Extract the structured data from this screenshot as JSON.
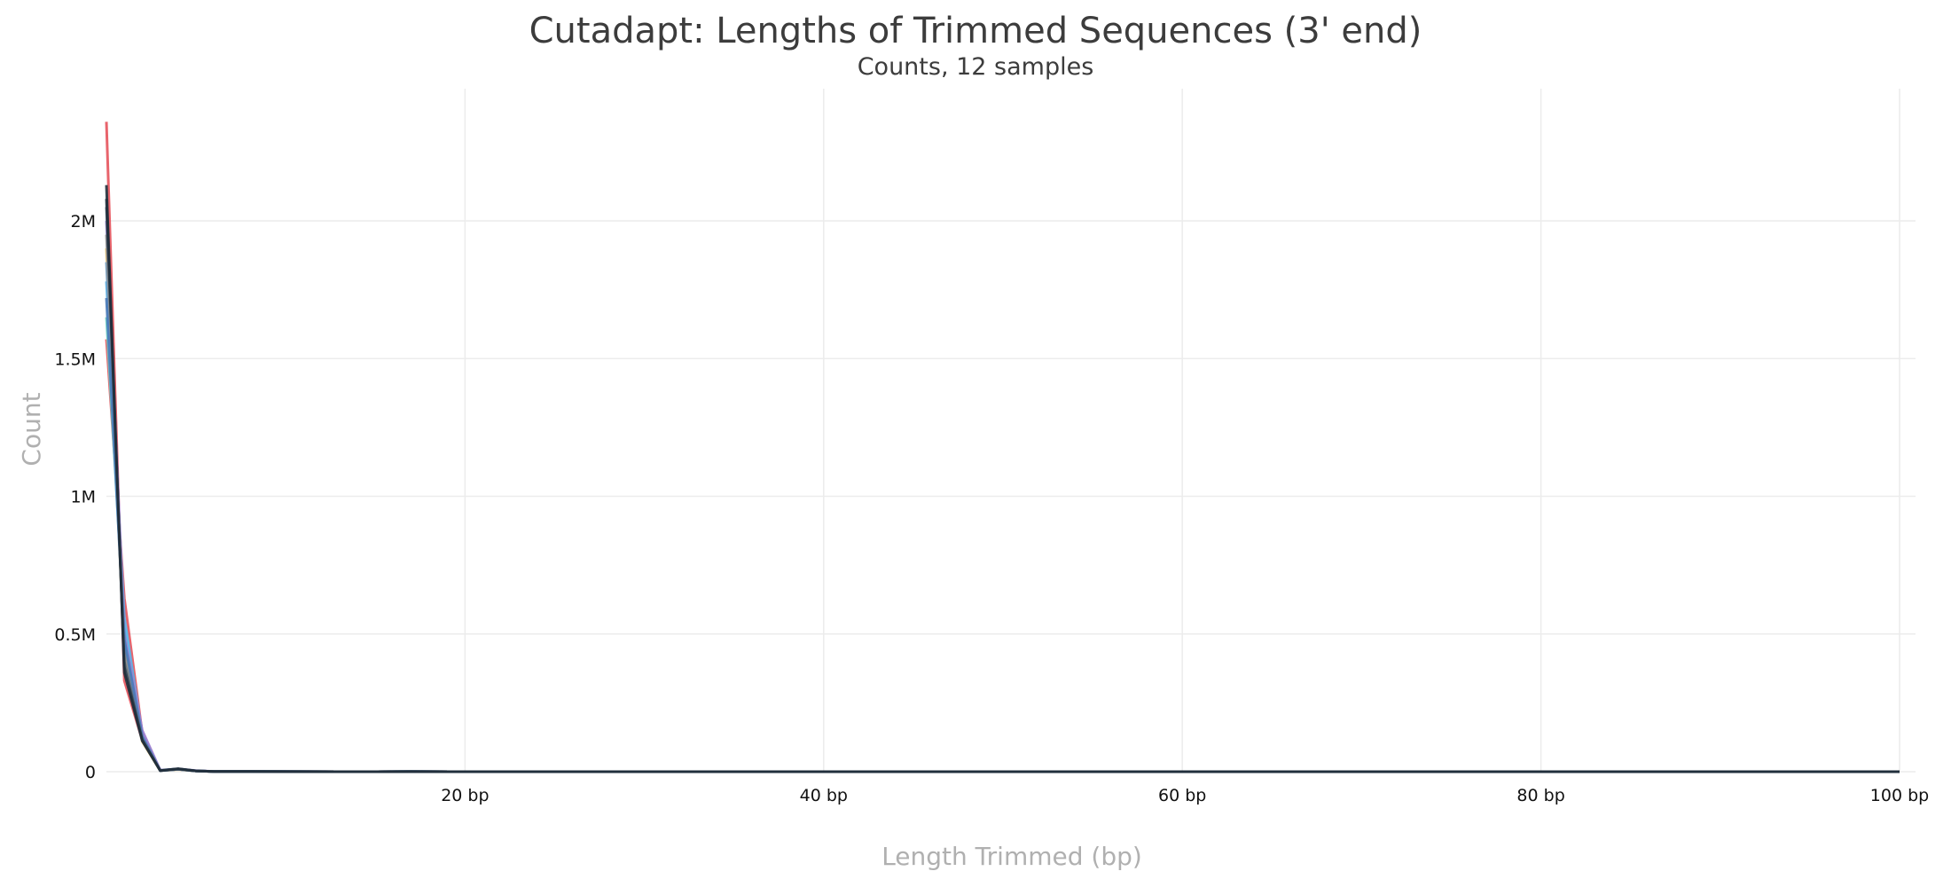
{
  "chart_data": {
    "type": "line",
    "title": "Cutadapt: Lengths of Trimmed Sequences (3' end)",
    "subtitle": "Counts, 12 samples",
    "xlabel": "Length Trimmed (bp)",
    "ylabel": "Count",
    "xlim": [
      0,
      100
    ],
    "ylim": [
      0,
      2480000
    ],
    "x_ticks": [
      {
        "value": 20,
        "label": "20 bp"
      },
      {
        "value": 40,
        "label": "40 bp"
      },
      {
        "value": 60,
        "label": "60 bp"
      },
      {
        "value": 80,
        "label": "80 bp"
      },
      {
        "value": 100,
        "label": "100 bp"
      }
    ],
    "y_ticks": [
      {
        "value": 0,
        "label": "0"
      },
      {
        "value": 500000,
        "label": "0.5M"
      },
      {
        "value": 1000000,
        "label": "1M"
      },
      {
        "value": 1500000,
        "label": "1.5M"
      },
      {
        "value": 2000000,
        "label": "2M"
      }
    ],
    "grid": true,
    "legend": "none",
    "x": [
      0,
      1,
      2,
      3,
      4,
      5,
      6,
      8,
      10,
      15,
      17,
      20,
      30,
      40,
      50,
      60,
      70,
      80,
      90,
      100
    ],
    "series": [
      {
        "color": "#e5535c",
        "values": [
          2360000,
          330000,
          115000,
          4000,
          9000,
          3000,
          1000,
          500,
          200,
          100,
          300,
          100,
          50,
          30,
          20,
          20,
          10,
          10,
          10,
          10
        ]
      },
      {
        "color": "#e5535c",
        "values": [
          1570000,
          630000,
          140000,
          5000,
          9000,
          3000,
          1000,
          500,
          200,
          100,
          300,
          100,
          50,
          30,
          20,
          20,
          10,
          10,
          10,
          10
        ]
      },
      {
        "color": "#f7c353",
        "values": [
          1900000,
          420000,
          110000,
          4000,
          8000,
          3000,
          1000,
          500,
          200,
          100,
          300,
          100,
          50,
          30,
          20,
          20,
          10,
          10,
          10,
          10
        ]
      },
      {
        "color": "#6fd3c5",
        "values": [
          1650000,
          520000,
          130000,
          4000,
          9000,
          3000,
          1000,
          500,
          200,
          100,
          600,
          100,
          50,
          30,
          20,
          20,
          10,
          10,
          10,
          10
        ]
      },
      {
        "color": "#56b4e9",
        "values": [
          1780000,
          560000,
          135000,
          5000,
          10000,
          3000,
          1000,
          500,
          200,
          100,
          400,
          100,
          50,
          30,
          20,
          20,
          10,
          10,
          10,
          10
        ]
      },
      {
        "color": "#9b7fd1",
        "values": [
          2000000,
          500000,
          150000,
          5000,
          10000,
          4000,
          1000,
          500,
          200,
          100,
          300,
          100,
          50,
          30,
          20,
          20,
          10,
          10,
          10,
          10
        ]
      },
      {
        "color": "#6b9ac4",
        "values": [
          1850000,
          470000,
          125000,
          4000,
          9000,
          3000,
          1000,
          500,
          200,
          100,
          300,
          100,
          50,
          30,
          20,
          20,
          10,
          10,
          10,
          10
        ]
      },
      {
        "color": "#8e8e8e",
        "values": [
          1950000,
          440000,
          120000,
          4000,
          9000,
          3000,
          1000,
          500,
          200,
          100,
          300,
          100,
          50,
          30,
          20,
          20,
          10,
          10,
          10,
          10
        ]
      },
      {
        "color": "#4a7ab8",
        "values": [
          1720000,
          480000,
          128000,
          4000,
          9000,
          3000,
          1000,
          500,
          200,
          100,
          300,
          100,
          50,
          30,
          20,
          20,
          10,
          10,
          10,
          10
        ]
      },
      {
        "color": "#5a6b7d",
        "values": [
          2050000,
          400000,
          118000,
          4000,
          9000,
          3000,
          1000,
          500,
          200,
          100,
          300,
          100,
          50,
          30,
          20,
          20,
          10,
          10,
          10,
          10
        ]
      },
      {
        "color": "#2f3e4e",
        "values": [
          2080000,
          380000,
          116000,
          4000,
          10000,
          3000,
          1000,
          500,
          200,
          100,
          300,
          100,
          50,
          30,
          20,
          20,
          10,
          10,
          10,
          10
        ]
      },
      {
        "color": "#1f2d3a",
        "values": [
          2130000,
          360000,
          112000,
          4000,
          11000,
          3000,
          1000,
          500,
          200,
          100,
          300,
          100,
          50,
          30,
          20,
          20,
          10,
          10,
          10,
          10
        ]
      }
    ]
  }
}
